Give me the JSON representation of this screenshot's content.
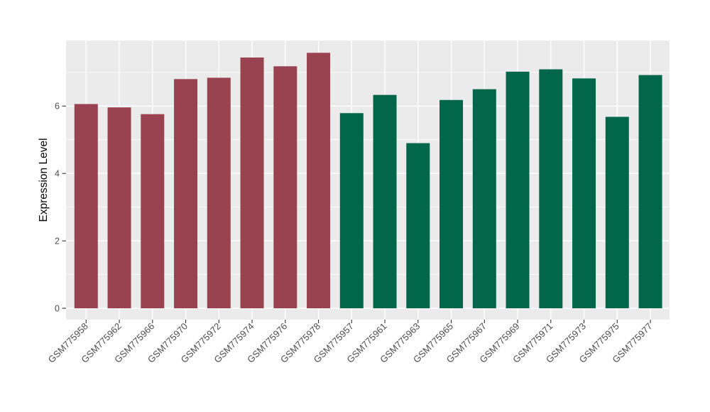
{
  "chart_data": {
    "type": "bar",
    "title": "",
    "xlabel": "",
    "ylabel": "Expression Level",
    "categories": [
      "GSM775958",
      "GSM775962",
      "GSM775966",
      "GSM775970",
      "GSM775972",
      "GSM775974",
      "GSM775976",
      "GSM775978",
      "GSM775957",
      "GSM775961",
      "GSM775963",
      "GSM775965",
      "GSM775967",
      "GSM775969",
      "GSM775971",
      "GSM775973",
      "GSM775975",
      "GSM775977"
    ],
    "values": [
      6.06,
      5.96,
      5.76,
      6.8,
      6.84,
      7.44,
      7.18,
      7.58,
      5.79,
      6.33,
      4.9,
      6.18,
      6.5,
      7.02,
      7.09,
      6.82,
      5.68,
      6.92
    ],
    "bar_colors": [
      "#9A4350",
      "#9A4350",
      "#9A4350",
      "#9A4350",
      "#9A4350",
      "#9A4350",
      "#9A4350",
      "#9A4350",
      "#01664A",
      "#01664A",
      "#01664A",
      "#01664A",
      "#01664A",
      "#01664A",
      "#01664A",
      "#01664A",
      "#01664A",
      "#01664A"
    ],
    "group_colors": {
      "left_group": "#9A4350",
      "right_group": "#01664A",
      "left_group_size": 8
    },
    "y_ticks": [
      0,
      2,
      4,
      6
    ],
    "y_minor_ticks": [
      1,
      3,
      5,
      7
    ],
    "ylim": [
      0,
      7.95
    ],
    "grid": "on",
    "legend": "none",
    "x_tick_rotation_deg": 45,
    "panel_background": "#EBEBEB",
    "gridline_color": "#FFFFFF",
    "tick_mark_color": "#333333",
    "tick_label_color": "#4D4D4D",
    "axis_title_color": "#000000"
  }
}
